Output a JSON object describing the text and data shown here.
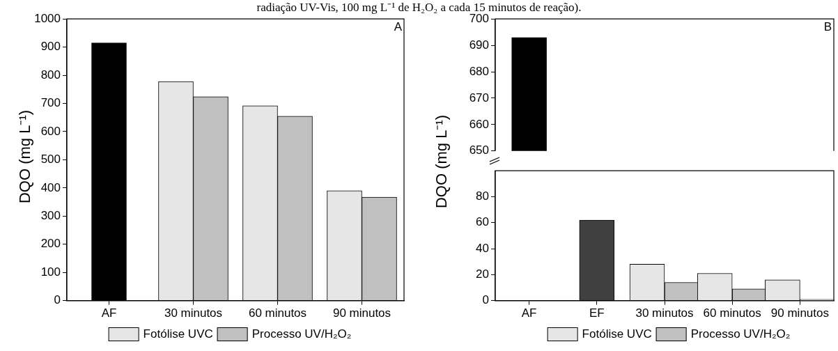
{
  "chart_data": [
    {
      "type": "bar",
      "title": "radiação UV-Vis, 100 mg L⁻¹ de H₂O₂ a cada 15 minutos de reação).",
      "ylabel": "DQO (mg L⁻¹)",
      "categories": [
        "AF",
        "30 minutos",
        "60 minutos",
        "90 minutos"
      ],
      "series": [
        {
          "color": "#000000",
          "values": [
            915,
            null,
            null,
            null
          ]
        },
        {
          "name": "Fotólise UVC",
          "color": "#e6e6e6",
          "values": [
            null,
            778,
            692,
            390
          ]
        },
        {
          "name": "Processo UV/H₂O₂",
          "color": "#c0c0c0",
          "values": [
            null,
            724,
            655,
            367
          ]
        }
      ],
      "ylim": [
        0,
        1000
      ],
      "yticks": [
        0,
        100,
        200,
        300,
        400,
        500,
        600,
        700,
        800,
        900,
        1000
      ],
      "grid": false,
      "legend": "bottom",
      "annotations": [
        "A"
      ]
    },
    {
      "type": "bar",
      "categories": [
        null,
        null,
        null,
        null,
        null
      ],
      "series": [
        {
          "color": "#000000",
          "values": [
            693,
            null,
            null,
            null,
            null
          ]
        }
      ],
      "ylim": [
        650,
        700
      ],
      "yticks": [
        650,
        660,
        670,
        680,
        690,
        700
      ],
      "tick_labels": "y",
      "grid": false,
      "annotations": [
        "B"
      ]
    },
    {
      "type": "bar",
      "ylabel": "DQO (mg L⁻¹)",
      "categories": [
        "AF",
        "EF",
        "30 minutos",
        "60 minutos",
        "90 minutos"
      ],
      "series": [
        {
          "colors": [
            null,
            "#404040",
            null,
            null,
            null
          ],
          "values": [
            null,
            62,
            null,
            null,
            null
          ]
        },
        {
          "name": "Fotólise UVC",
          "color": "#e6e6e6",
          "values": [
            null,
            null,
            28,
            21,
            16
          ]
        },
        {
          "name": "Processo UV/H₂O₂",
          "color": "#c0c0c0",
          "values": [
            null,
            null,
            14,
            9,
            1
          ]
        }
      ],
      "ylim": [
        0,
        100
      ],
      "yticks": [
        0,
        20,
        40,
        60,
        80
      ],
      "grid": false,
      "legend": "bottom"
    }
  ]
}
